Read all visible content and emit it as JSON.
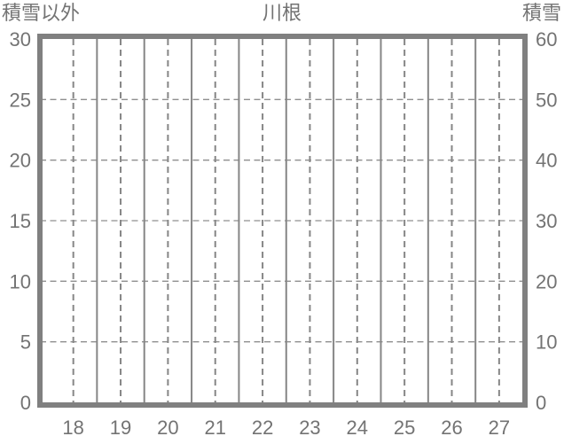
{
  "chart": {
    "title": "川根",
    "left_axis_title": "積雪以外",
    "right_axis_title": "積雪"
  },
  "colors": {
    "background": "#ffffff",
    "text": "#737373",
    "border": "#808080",
    "grid_vertical": "#868686",
    "grid_horizontal": "#8f8f8f"
  },
  "chart_data": {
    "type": "line",
    "title": "川根",
    "legend": "none",
    "series": [],
    "x_axis": {
      "tick_labels": [
        "18",
        "19",
        "20",
        "21",
        "22",
        "23",
        "24",
        "25",
        "26",
        "27"
      ],
      "min": 17.35,
      "max": 27.49,
      "dashed_gridlines_at_day_centers": true,
      "solid_gridlines_at_half_day_boundaries": true
    },
    "left_axis": {
      "label": "積雪以外",
      "min": 0,
      "max": 30,
      "tick_interval": 5,
      "ticks": [
        0,
        5,
        10,
        15,
        20,
        25,
        30
      ]
    },
    "right_axis": {
      "label": "積雪",
      "min": 0,
      "max": 60,
      "tick_interval": 10,
      "ticks": [
        0,
        10,
        20,
        30,
        40,
        50,
        60
      ]
    },
    "grid": {
      "horizontal_dashed_at_left_values": [
        5,
        10,
        15,
        20,
        25
      ],
      "horizontal_on": true,
      "vertical_on": true
    }
  }
}
